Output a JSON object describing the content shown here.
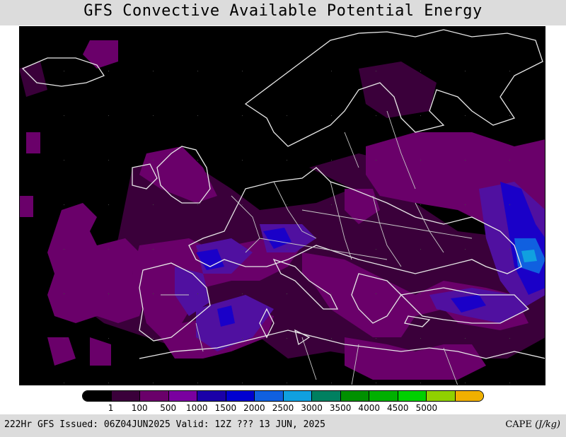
{
  "title": "GFS Convective Available Potential Energy",
  "legend": {
    "colors": [
      "#000000",
      "#3a003a",
      "#6a006a",
      "#7a00a0",
      "#1a00a8",
      "#0000d0",
      "#1060e0",
      "#10a0e0",
      "#008060",
      "#009000",
      "#00b000",
      "#00d000",
      "#90d000",
      "#f0b000"
    ],
    "labels": [
      "1",
      "100",
      "500",
      "1000",
      "1500",
      "2000",
      "2500",
      "3000",
      "3500",
      "4000",
      "4500",
      "5000"
    ]
  },
  "footer": {
    "left": "222Hr GFS Issued: 06Z04JUN2025 Valid: 12Z ??? 13 JUN, 2025",
    "right_name": "CAPE",
    "right_unit": "(J/kg)"
  }
}
